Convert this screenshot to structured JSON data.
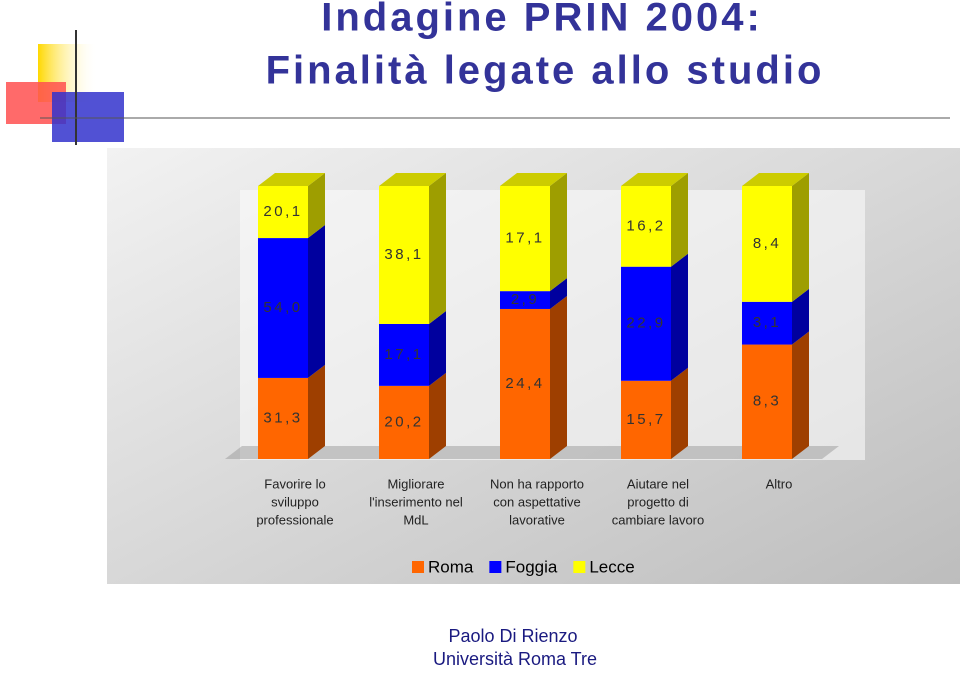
{
  "slide": {
    "title": [
      "Indagine PRIN 2004:",
      "Finalità legate allo studio"
    ],
    "footer": [
      "Paolo Di Rienzo",
      "Università Roma Tre"
    ]
  },
  "chart_data": {
    "type": "bar",
    "stacking": "percent",
    "categories": [
      [
        "Favorire lo",
        "sviluppo",
        "professionale"
      ],
      [
        "Migliorare",
        "l'inserimento nel",
        "MdL"
      ],
      [
        "Non ha rapporto",
        "con aspettative",
        "lavorative"
      ],
      [
        "Aiutare nel",
        "progetto di",
        "cambiare lavoro"
      ],
      [
        "Altro"
      ]
    ],
    "series": [
      {
        "name": "Roma",
        "color": "#ff6600",
        "values": [
          31.3,
          20.2,
          24.4,
          15.7,
          8.3
        ],
        "value_labels": [
          "31,3",
          "20,2",
          "24,4",
          "15,7",
          "8,3"
        ]
      },
      {
        "name": "Foggia",
        "color": "#0000ff",
        "values": [
          54.0,
          17.1,
          2.9,
          22.9,
          3.1
        ],
        "value_labels": [
          "54,0",
          "17,1",
          "2,9",
          "22,9",
          "3,1"
        ]
      },
      {
        "name": "Lecce",
        "color": "#ffff00",
        "values": [
          20.1,
          38.1,
          17.1,
          16.2,
          8.4
        ],
        "value_labels": [
          "20,1",
          "38,1",
          "17,1",
          "16,2",
          "8,4"
        ]
      }
    ]
  }
}
